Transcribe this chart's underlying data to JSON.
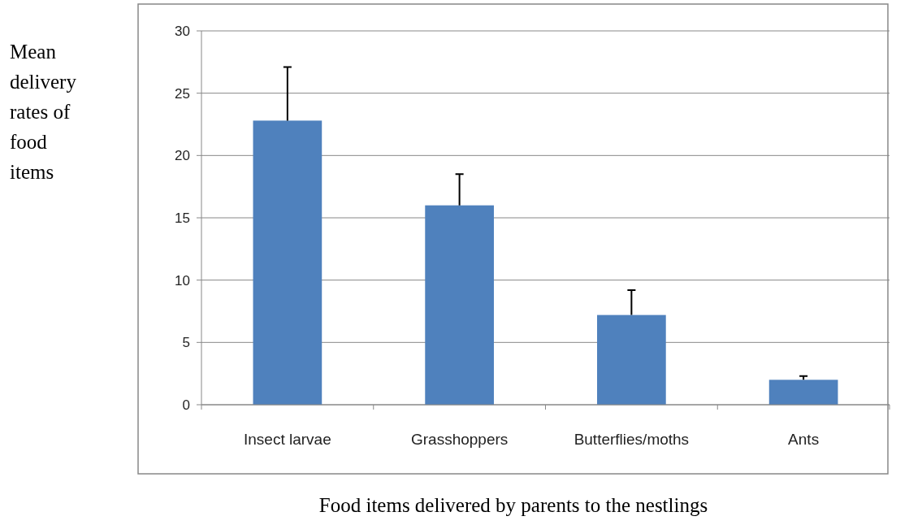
{
  "chart_data": {
    "type": "bar",
    "categories": [
      "Insect larvae",
      "Grasshoppers",
      "Butterflies/moths",
      "Ants"
    ],
    "values": [
      22.8,
      16,
      7.2,
      2
    ],
    "errors": [
      [
        22.8,
        27.1
      ],
      [
        16,
        18.5
      ],
      [
        7.2,
        9.2
      ],
      [
        2,
        2.3
      ]
    ],
    "color": "#4f81bd",
    "ylim": [
      0,
      30
    ],
    "yticks": [
      0,
      5,
      10,
      15,
      20,
      25,
      30
    ],
    "grid": "y",
    "ylabel": "Mean delivery rates of food items",
    "xlabel": "Food items delivered by parents to the nestlings"
  }
}
